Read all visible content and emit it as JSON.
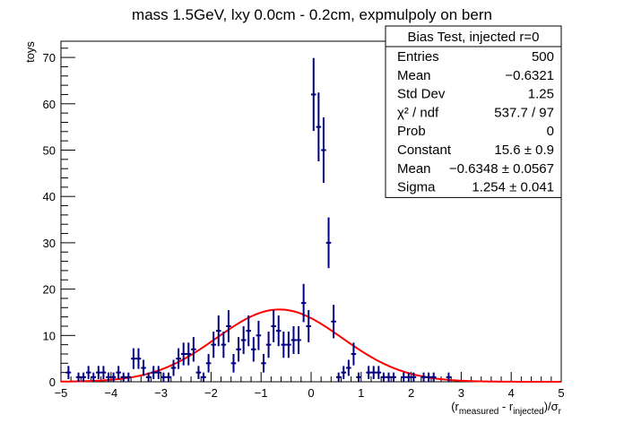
{
  "chart_data": {
    "type": "scatter",
    "title": "mass 1.5GeV, lxy 0.0cm - 0.2cm, expmulpoly on bern",
    "ylabel": "toys",
    "xlabel": {
      "prefix": "(r",
      "sub1": "measured",
      "mid": " - r",
      "sub2": "injected",
      "suffix": ")/σ",
      "sub3": "r"
    },
    "xlim": [
      -5,
      5
    ],
    "ylim": [
      0,
      73.5
    ],
    "xticks": [
      -5,
      -4,
      -3,
      -2,
      -1,
      0,
      1,
      2,
      3,
      4,
      5
    ],
    "yticks": [
      0,
      10,
      20,
      30,
      40,
      50,
      60,
      70
    ],
    "bin_width": 0.1,
    "colors": {
      "points": "#000080",
      "fit": "#ff0000",
      "frame": "#000000"
    },
    "series": [
      {
        "kind": "histogram-errorbars",
        "bin_centers": [
          -4.85,
          -4.65,
          -4.55,
          -4.45,
          -4.35,
          -4.25,
          -4.15,
          -4.05,
          -3.95,
          -3.85,
          -3.75,
          -3.65,
          -3.55,
          -3.45,
          -3.35,
          -3.25,
          -3.15,
          -3.05,
          -2.95,
          -2.85,
          -2.75,
          -2.65,
          -2.55,
          -2.45,
          -2.35,
          -2.25,
          -2.15,
          -2.05,
          -1.95,
          -1.85,
          -1.75,
          -1.65,
          -1.55,
          -1.45,
          -1.35,
          -1.25,
          -1.15,
          -1.05,
          -0.95,
          -0.85,
          -0.75,
          -0.65,
          -0.55,
          -0.45,
          -0.35,
          -0.25,
          -0.15,
          -0.05,
          0.05,
          0.15,
          0.25,
          0.35,
          0.45,
          0.55,
          0.65,
          0.75,
          0.85,
          0.95,
          1.15,
          1.25,
          1.35,
          1.45,
          1.55,
          1.65,
          1.85,
          1.95,
          2.05,
          2.25,
          2.35,
          2.45,
          2.75
        ],
        "counts": [
          2,
          1,
          1,
          2,
          1,
          2,
          2,
          1,
          1,
          2,
          1,
          1,
          5,
          5,
          3,
          1,
          2,
          2,
          1,
          1,
          3,
          5,
          6,
          6,
          7,
          2,
          1,
          4,
          8,
          11,
          8,
          12,
          4,
          7,
          9,
          11,
          7,
          10,
          4,
          8,
          12,
          11,
          8,
          8,
          9,
          9,
          17,
          12,
          62,
          55,
          50,
          30,
          13,
          1,
          2,
          3,
          6,
          1,
          2,
          2,
          2,
          1,
          1,
          1,
          1,
          1,
          1,
          1,
          1,
          1,
          1
        ]
      },
      {
        "kind": "gaussian-fit",
        "constant": 15.6,
        "mean": -0.6348,
        "sigma": 1.254
      }
    ],
    "legend": {
      "placement": "top-right",
      "title": "Bias Test, injected r=0",
      "rows": [
        {
          "label": "Entries",
          "value": "500"
        },
        {
          "label": "Mean",
          "value": "−0.6321"
        },
        {
          "label": "Std Dev",
          "value": "1.25"
        },
        {
          "label": "χ² / ndf",
          "value": "537.7 / 97"
        },
        {
          "label": "Prob",
          "value": "0"
        },
        {
          "label": "Constant",
          "value": "15.6 ± 0.9"
        },
        {
          "label": "Mean",
          "value": "−0.6348 ± 0.0567"
        },
        {
          "label": "Sigma",
          "value": "1.254 ± 0.041"
        }
      ]
    }
  }
}
